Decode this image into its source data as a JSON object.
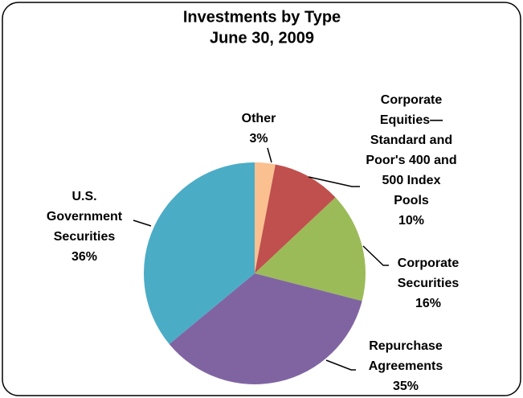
{
  "chart_data": {
    "type": "pie",
    "title": "Investments by Type",
    "subtitle": "June 30, 2009",
    "categories": [
      "Other",
      "Corporate Equities—Standard and Poor's 400 and 500 Index Pools",
      "Corporate Securities",
      "Repurchase Agreements",
      "U.S. Government Securities"
    ],
    "values": [
      3,
      10,
      16,
      35,
      36
    ],
    "value_labels": [
      "3%",
      "10%",
      "16%",
      "35%",
      "36%"
    ],
    "colors": [
      "#FAC090",
      "#C0504D",
      "#9BBB59",
      "#8064A2",
      "#4BACC6"
    ]
  }
}
